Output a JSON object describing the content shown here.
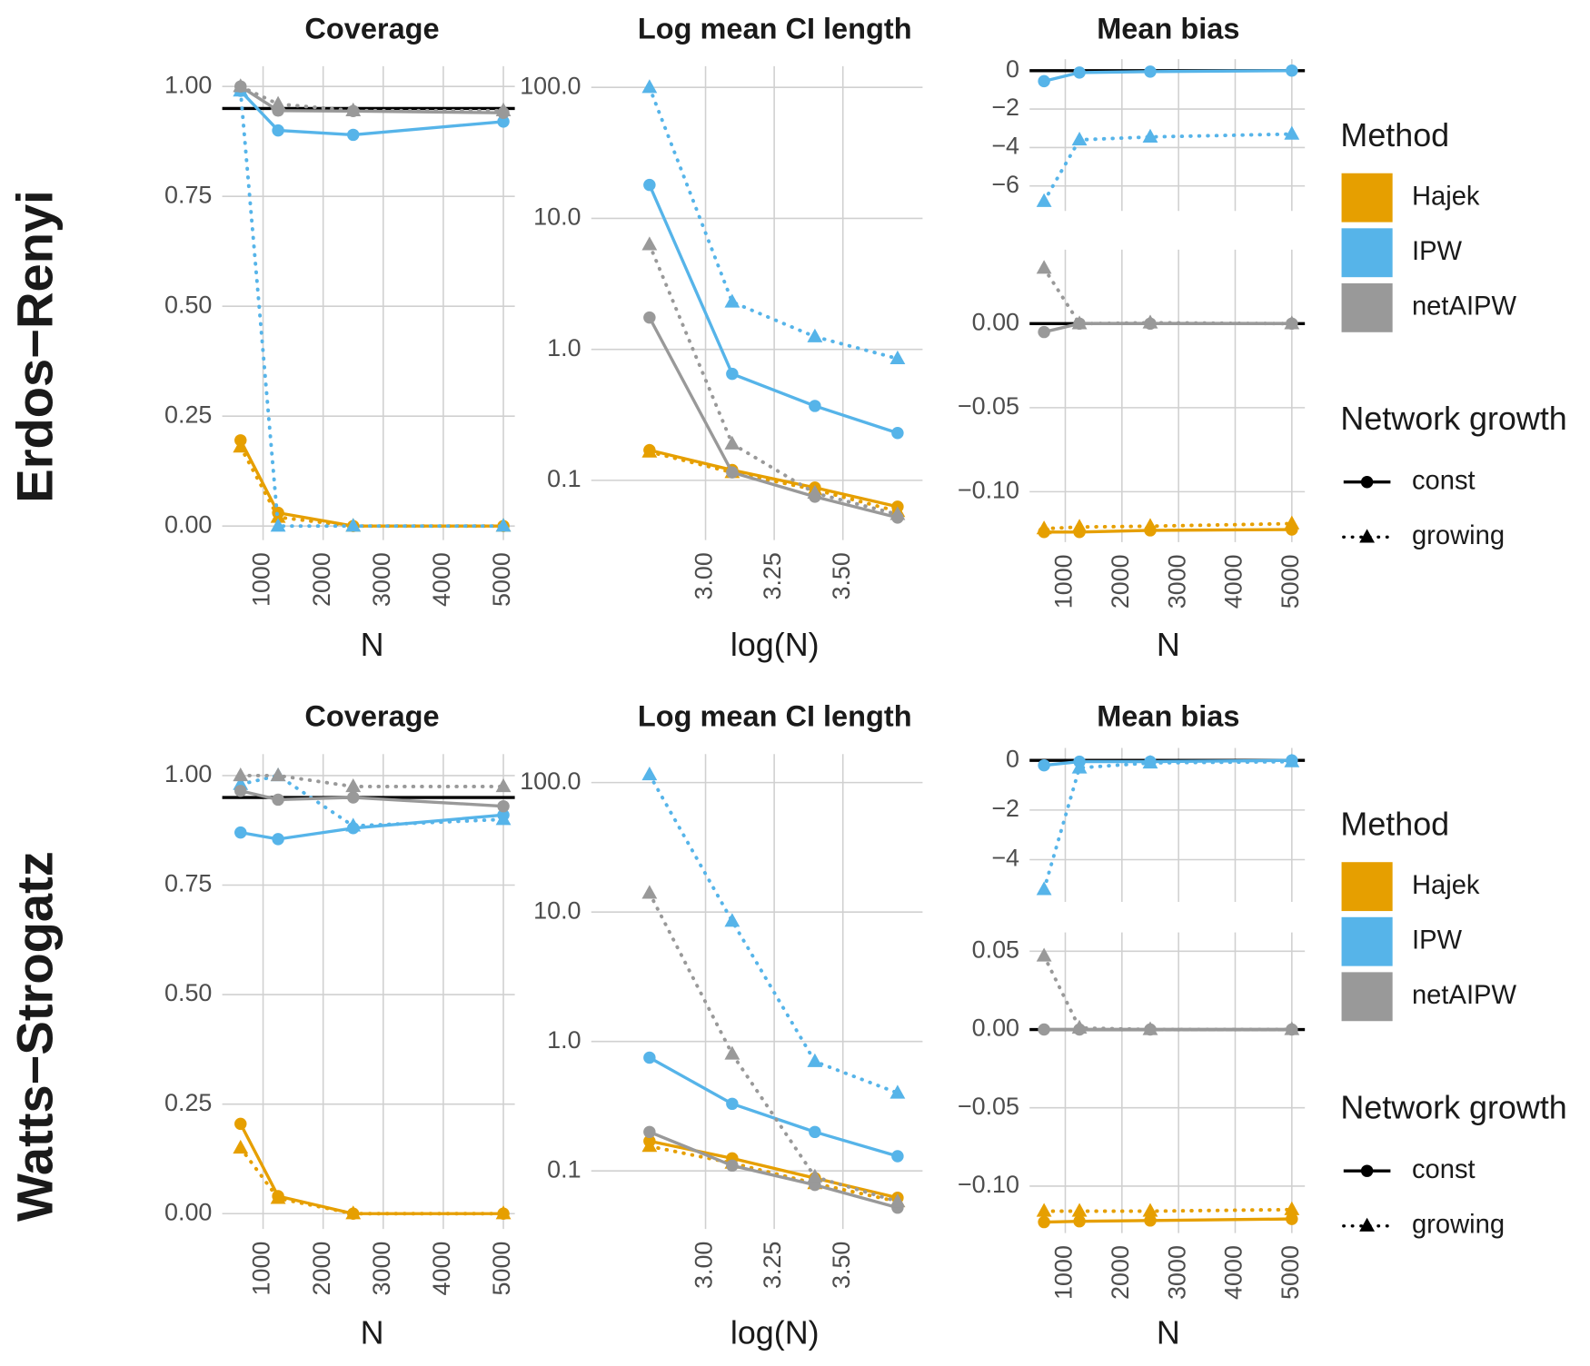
{
  "row_labels": [
    "Erdos−Renyi",
    "Watts−Strogatz"
  ],
  "legend_titles": [
    "Method",
    "Network growth"
  ],
  "chart_data": [
    {
      "type": "line",
      "title": "Coverage",
      "xlabel": "N",
      "grid": true,
      "x": [
        625,
        1250,
        2500,
        5000
      ],
      "xlim": [
        320,
        5190
      ],
      "xticks": [
        1000,
        2000,
        3000,
        4000,
        5000
      ],
      "ylim": [
        -0.032,
        1.046
      ],
      "yticks": [
        {
          "value": 0,
          "label": "0.00"
        },
        {
          "value": 0.25,
          "label": "0.25"
        },
        {
          "value": 0.5,
          "label": "0.50"
        },
        {
          "value": 0.75,
          "label": "0.75"
        },
        {
          "value": 1,
          "label": "1.00"
        }
      ],
      "hline": 0.95,
      "series": [
        {
          "name": "Hajek",
          "growth": "const",
          "color": "#E69F00",
          "dash": "solid",
          "marker": "circle",
          "values": [
            0.195,
            0.03,
            0.0,
            0.0
          ]
        },
        {
          "name": "Hajek",
          "growth": "growing",
          "color": "#E69F00",
          "dash": "dotted",
          "marker": "triangle",
          "values": [
            0.18,
            0.02,
            0.0,
            0.0
          ]
        },
        {
          "name": "IPW",
          "growth": "const",
          "color": "#56B4E9",
          "dash": "solid",
          "marker": "circle",
          "values": [
            0.99,
            0.9,
            0.89,
            0.92
          ]
        },
        {
          "name": "IPW",
          "growth": "growing",
          "color": "#56B4E9",
          "dash": "dotted",
          "marker": "triangle",
          "values": [
            0.99,
            0.0,
            0.0,
            0.0
          ]
        },
        {
          "name": "netAIPW",
          "growth": "const",
          "color": "#999999",
          "dash": "solid",
          "marker": "circle",
          "values": [
            1.0,
            0.945,
            0.944,
            0.94
          ]
        },
        {
          "name": "netAIPW",
          "growth": "growing",
          "color": "#999999",
          "dash": "dotted",
          "marker": "triangle",
          "values": [
            1.0,
            0.96,
            0.945,
            0.945
          ]
        }
      ]
    },
    {
      "type": "line",
      "title": "Log mean CI length",
      "xlabel": "log(N)",
      "grid": true,
      "log_y": true,
      "x": [
        2.796,
        3.097,
        3.398,
        3.699
      ],
      "xlim": [
        2.584,
        3.79
      ],
      "xticks": [
        {
          "value": 3,
          "label": "3.00"
        },
        3.25,
        {
          "value": 3.5,
          "label": "3.50"
        }
      ],
      "ylim": [
        0.035,
        145
      ],
      "yticks": [
        0.1,
        {
          "value": 1,
          "label": "1.0"
        },
        {
          "value": 10,
          "label": "10.0"
        },
        {
          "value": 100,
          "label": "100.0"
        }
      ],
      "series": [
        {
          "name": "Hajek",
          "growth": "const",
          "color": "#E69F00",
          "dash": "solid",
          "marker": "circle",
          "values": [
            0.17,
            0.12,
            0.088,
            0.063
          ]
        },
        {
          "name": "Hajek",
          "growth": "growing",
          "color": "#E69F00",
          "dash": "dotted",
          "marker": "triangle",
          "values": [
            0.165,
            0.115,
            0.085,
            0.058
          ]
        },
        {
          "name": "IPW",
          "growth": "const",
          "color": "#56B4E9",
          "dash": "solid",
          "marker": "circle",
          "values": [
            18,
            0.65,
            0.37,
            0.23
          ]
        },
        {
          "name": "IPW",
          "growth": "growing",
          "color": "#56B4E9",
          "dash": "dotted",
          "marker": "triangle",
          "values": [
            100,
            2.3,
            1.25,
            0.85
          ]
        },
        {
          "name": "netAIPW",
          "growth": "const",
          "color": "#999999",
          "dash": "solid",
          "marker": "circle",
          "values": [
            1.75,
            0.115,
            0.075,
            0.052
          ]
        },
        {
          "name": "netAIPW",
          "growth": "growing",
          "color": "#999999",
          "dash": "dotted",
          "marker": "triangle",
          "values": [
            6.3,
            0.19,
            0.08,
            0.055
          ]
        }
      ]
    },
    {
      "type": "line",
      "title": "Mean bias",
      "grid": true,
      "x": [
        625,
        1250,
        2500,
        5000
      ],
      "xlim": [
        370,
        5230
      ],
      "ylim": [
        -7.3,
        0.6
      ],
      "yticks": [
        {
          "value": -6,
          "label": "−6"
        },
        {
          "value": -4,
          "label": "−4"
        },
        {
          "value": -2,
          "label": "−2"
        },
        0
      ],
      "hline": 0,
      "series": [
        {
          "name": "IPW",
          "growth": "const",
          "color": "#56B4E9",
          "dash": "solid",
          "marker": "circle",
          "values": [
            -0.55,
            -0.1,
            -0.05,
            0
          ]
        },
        {
          "name": "IPW",
          "growth": "growing",
          "color": "#56B4E9",
          "dash": "dotted",
          "marker": "triangle",
          "values": [
            -6.8,
            -3.6,
            -3.45,
            -3.3
          ]
        }
      ]
    },
    {
      "type": "line",
      "xlabel": "N",
      "grid": true,
      "x": [
        625,
        1250,
        2500,
        5000
      ],
      "xlim": [
        370,
        5230
      ],
      "xticks": [
        1000,
        2000,
        3000,
        4000,
        5000
      ],
      "ylim": [
        -0.13,
        0.044
      ],
      "yticks": [
        {
          "value": -0.1,
          "label": "−0.10"
        },
        {
          "value": -0.05,
          "label": "−0.05"
        },
        {
          "value": 0,
          "label": "0.00"
        }
      ],
      "hline": 0,
      "series": [
        {
          "name": "Hajek",
          "growth": "const",
          "color": "#E69F00",
          "dash": "solid",
          "marker": "circle",
          "values": [
            -0.124,
            -0.124,
            -0.123,
            -0.1225
          ]
        },
        {
          "name": "Hajek",
          "growth": "growing",
          "color": "#E69F00",
          "dash": "dotted",
          "marker": "triangle",
          "values": [
            -0.122,
            -0.121,
            -0.1205,
            -0.119
          ]
        },
        {
          "name": "netAIPW",
          "growth": "const",
          "color": "#999999",
          "dash": "solid",
          "marker": "circle",
          "values": [
            -0.005,
            0,
            0,
            0
          ]
        },
        {
          "name": "netAIPW",
          "growth": "growing",
          "color": "#999999",
          "dash": "dotted",
          "marker": "triangle",
          "values": [
            0.033,
            0,
            0.0005,
            0
          ]
        }
      ]
    },
    {
      "type": "line",
      "title": "Coverage",
      "xlabel": "N",
      "grid": true,
      "x": [
        625,
        1250,
        2500,
        5000
      ],
      "xlim": [
        320,
        5190
      ],
      "xticks": [
        1000,
        2000,
        3000,
        4000,
        5000
      ],
      "ylim": [
        -0.035,
        1.049
      ],
      "yticks": [
        {
          "value": 0,
          "label": "0.00"
        },
        {
          "value": 0.25,
          "label": "0.25"
        },
        {
          "value": 0.5,
          "label": "0.50"
        },
        {
          "value": 0.75,
          "label": "0.75"
        },
        {
          "value": 1,
          "label": "1.00"
        }
      ],
      "hline": 0.95,
      "series": [
        {
          "name": "Hajek",
          "growth": "const",
          "color": "#E69F00",
          "dash": "solid",
          "marker": "circle",
          "values": [
            0.205,
            0.04,
            0,
            0
          ]
        },
        {
          "name": "Hajek",
          "growth": "growing",
          "color": "#E69F00",
          "dash": "dotted",
          "marker": "triangle",
          "values": [
            0.15,
            0.035,
            0,
            0
          ]
        },
        {
          "name": "IPW",
          "growth": "const",
          "color": "#56B4E9",
          "dash": "solid",
          "marker": "circle",
          "values": [
            0.87,
            0.855,
            0.88,
            0.91
          ]
        },
        {
          "name": "IPW",
          "growth": "growing",
          "color": "#56B4E9",
          "dash": "dotted",
          "marker": "triangle",
          "values": [
            0.98,
            1.0,
            0.885,
            0.9
          ]
        },
        {
          "name": "netAIPW",
          "growth": "const",
          "color": "#999999",
          "dash": "solid",
          "marker": "circle",
          "values": [
            0.965,
            0.945,
            0.95,
            0.93
          ]
        },
        {
          "name": "netAIPW",
          "growth": "growing",
          "color": "#999999",
          "dash": "dotted",
          "marker": "triangle",
          "values": [
            1.0,
            1.0,
            0.975,
            0.975
          ]
        }
      ]
    },
    {
      "type": "line",
      "title": "Log mean CI length",
      "xlabel": "log(N)",
      "grid": true,
      "log_y": true,
      "x": [
        2.796,
        3.097,
        3.398,
        3.699
      ],
      "xlim": [
        2.584,
        3.79
      ],
      "xticks": [
        {
          "value": 3,
          "label": "3.00"
        },
        3.25,
        {
          "value": 3.5,
          "label": "3.50"
        }
      ],
      "ylim": [
        0.0356,
        166
      ],
      "yticks": [
        0.1,
        {
          "value": 1,
          "label": "1.0"
        },
        {
          "value": 10,
          "label": "10.0"
        },
        {
          "value": 100,
          "label": "100.0"
        }
      ],
      "series": [
        {
          "name": "Hajek",
          "growth": "const",
          "color": "#E69F00",
          "dash": "solid",
          "marker": "circle",
          "values": [
            0.17,
            0.125,
            0.088,
            0.062
          ]
        },
        {
          "name": "Hajek",
          "growth": "growing",
          "color": "#E69F00",
          "dash": "dotted",
          "marker": "triangle",
          "values": [
            0.155,
            0.115,
            0.08,
            0.058
          ]
        },
        {
          "name": "IPW",
          "growth": "const",
          "color": "#56B4E9",
          "dash": "solid",
          "marker": "circle",
          "values": [
            0.75,
            0.33,
            0.2,
            0.13
          ]
        },
        {
          "name": "IPW",
          "growth": "growing",
          "color": "#56B4E9",
          "dash": "dotted",
          "marker": "triangle",
          "values": [
            115,
            8.5,
            0.7,
            0.4
          ]
        },
        {
          "name": "netAIPW",
          "growth": "const",
          "color": "#999999",
          "dash": "solid",
          "marker": "circle",
          "values": [
            0.2,
            0.11,
            0.078,
            0.052
          ]
        },
        {
          "name": "netAIPW",
          "growth": "growing",
          "color": "#999999",
          "dash": "dotted",
          "marker": "triangle",
          "values": [
            14,
            0.8,
            0.09,
            0.058
          ]
        }
      ]
    },
    {
      "type": "line",
      "title": "Mean bias",
      "grid": true,
      "x": [
        625,
        1250,
        2500,
        5000
      ],
      "xlim": [
        370,
        5230
      ],
      "ylim": [
        -5.7,
        0.5
      ],
      "yticks": [
        {
          "value": -4,
          "label": "−4"
        },
        {
          "value": -2,
          "label": "−2"
        },
        0
      ],
      "hline": 0,
      "series": [
        {
          "name": "IPW",
          "growth": "const",
          "color": "#56B4E9",
          "dash": "solid",
          "marker": "circle",
          "values": [
            -0.2,
            -0.05,
            -0.05,
            0
          ]
        },
        {
          "name": "IPW",
          "growth": "growing",
          "color": "#56B4E9",
          "dash": "dotted",
          "marker": "triangle",
          "values": [
            -5.2,
            -0.3,
            -0.1,
            -0.05
          ]
        }
      ]
    },
    {
      "type": "line",
      "xlabel": "N",
      "grid": true,
      "x": [
        625,
        1250,
        2500,
        5000
      ],
      "xlim": [
        370,
        5230
      ],
      "xticks": [
        1000,
        2000,
        3000,
        4000,
        5000
      ],
      "ylim": [
        -0.13,
        0.062
      ],
      "yticks": [
        {
          "value": -0.1,
          "label": "−0.10"
        },
        {
          "value": -0.05,
          "label": "−0.05"
        },
        {
          "value": 0,
          "label": "0.00"
        },
        {
          "value": 0.05,
          "label": "0.05"
        }
      ],
      "hline": 0,
      "series": [
        {
          "name": "Hajek",
          "growth": "const",
          "color": "#E69F00",
          "dash": "solid",
          "marker": "circle",
          "values": [
            -0.123,
            -0.1225,
            -0.122,
            -0.121
          ]
        },
        {
          "name": "Hajek",
          "growth": "growing",
          "color": "#E69F00",
          "dash": "dotted",
          "marker": "triangle",
          "values": [
            -0.116,
            -0.116,
            -0.116,
            -0.115
          ]
        },
        {
          "name": "netAIPW",
          "growth": "const",
          "color": "#999999",
          "dash": "solid",
          "marker": "circle",
          "values": [
            0,
            0,
            0,
            0
          ]
        },
        {
          "name": "netAIPW",
          "growth": "growing",
          "color": "#999999",
          "dash": "dotted",
          "marker": "triangle",
          "values": [
            0.047,
            0.001,
            0,
            0
          ]
        }
      ]
    }
  ]
}
